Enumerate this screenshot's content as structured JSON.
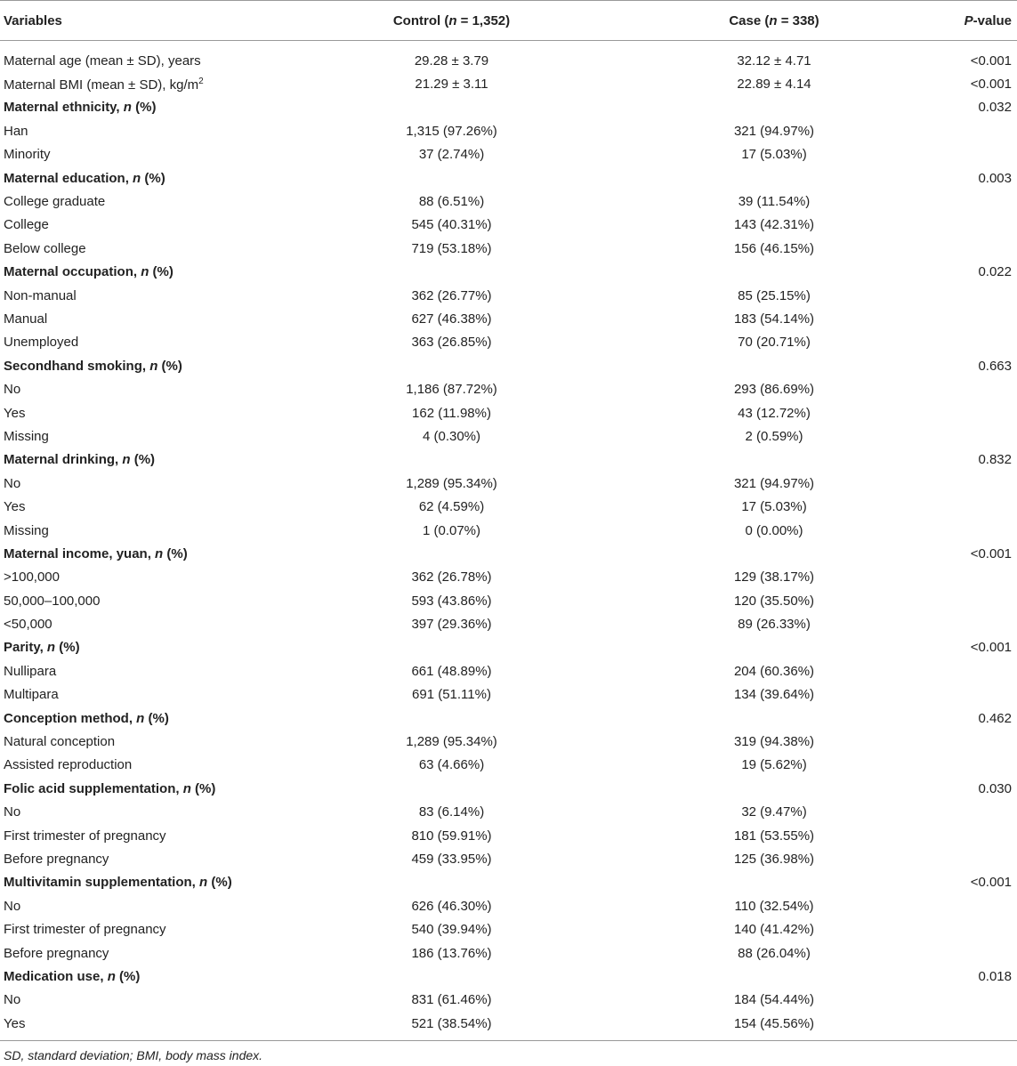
{
  "table": {
    "columns": [
      {
        "text": "Variables"
      },
      {
        "pre": "Control (",
        "italic": "n",
        "post": " = 1,352)"
      },
      {
        "pre": "Case (",
        "italic": "n",
        "post": " = 338)"
      },
      {
        "pre": "",
        "italic": "P",
        "post": "-value"
      }
    ],
    "rows": [
      {
        "type": "data",
        "label": "Maternal age (mean ± SD), years",
        "control": "29.28 ± 3.79",
        "case": "32.12 ± 4.71",
        "p": "<0.001"
      },
      {
        "type": "data",
        "label": "Maternal BMI (mean ± SD), kg/m",
        "sup": "2",
        "control": "21.29 ± 3.11",
        "case": "22.89 ± 4.14",
        "p": "<0.001"
      },
      {
        "type": "header",
        "label": "Maternal ethnicity, ",
        "n": "n",
        "suffix": " (%)",
        "p": "0.032"
      },
      {
        "type": "data",
        "label": "Han",
        "control": "1,315 (97.26%)",
        "case": "321 (94.97%)",
        "p": ""
      },
      {
        "type": "data",
        "label": "Minority",
        "control": "37 (2.74%)",
        "case": "17 (5.03%)",
        "p": ""
      },
      {
        "type": "header",
        "label": "Maternal education, ",
        "n": "n",
        "suffix": " (%)",
        "p": "0.003"
      },
      {
        "type": "data",
        "label": "College graduate",
        "control": "88 (6.51%)",
        "case": "39 (11.54%)",
        "p": ""
      },
      {
        "type": "data",
        "label": "College",
        "control": "545 (40.31%)",
        "case": "143 (42.31%)",
        "p": ""
      },
      {
        "type": "data",
        "label": "Below college",
        "control": "719 (53.18%)",
        "case": "156 (46.15%)",
        "p": ""
      },
      {
        "type": "header",
        "label": "Maternal occupation, ",
        "n": "n",
        "suffix": " (%)",
        "p": "0.022"
      },
      {
        "type": "data",
        "label": "Non-manual",
        "control": "362 (26.77%)",
        "case": "85 (25.15%)",
        "p": ""
      },
      {
        "type": "data",
        "label": "Manual",
        "control": "627 (46.38%)",
        "case": "183 (54.14%)",
        "p": ""
      },
      {
        "type": "data",
        "label": "Unemployed",
        "control": "363 (26.85%)",
        "case": "70 (20.71%)",
        "p": ""
      },
      {
        "type": "header",
        "label": "Secondhand smoking, ",
        "n": "n",
        "suffix": " (%)",
        "p": "0.663"
      },
      {
        "type": "data",
        "label": "No",
        "control": "1,186 (87.72%)",
        "case": "293 (86.69%)",
        "p": ""
      },
      {
        "type": "data",
        "label": "Yes",
        "control": "162 (11.98%)",
        "case": "43 (12.72%)",
        "p": ""
      },
      {
        "type": "data",
        "label": "Missing",
        "control": "4 (0.30%)",
        "case": "2 (0.59%)",
        "p": ""
      },
      {
        "type": "header",
        "label": "Maternal drinking, ",
        "n": "n",
        "suffix": " (%)",
        "p": "0.832"
      },
      {
        "type": "data",
        "label": "No",
        "control": "1,289 (95.34%)",
        "case": "321 (94.97%)",
        "p": ""
      },
      {
        "type": "data",
        "label": "Yes",
        "control": "62 (4.59%)",
        "case": "17 (5.03%)",
        "p": ""
      },
      {
        "type": "data",
        "label": "Missing",
        "control": "1 (0.07%)",
        "case": "0 (0.00%)",
        "p": ""
      },
      {
        "type": "header",
        "label": "Maternal income, yuan, ",
        "n": "n",
        "suffix": " (%)",
        "p": "<0.001"
      },
      {
        "type": "data",
        "label": ">100,000",
        "control": "362 (26.78%)",
        "case": "129 (38.17%)",
        "p": ""
      },
      {
        "type": "data",
        "label": "50,000–100,000",
        "control": "593 (43.86%)",
        "case": "120 (35.50%)",
        "p": ""
      },
      {
        "type": "data",
        "label": "<50,000",
        "control": "397 (29.36%)",
        "case": "89 (26.33%)",
        "p": ""
      },
      {
        "type": "header",
        "label": "Parity, ",
        "n": "n",
        "suffix": " (%)",
        "p": "<0.001"
      },
      {
        "type": "data",
        "label": "Nullipara",
        "control": "661 (48.89%)",
        "case": "204 (60.36%)",
        "p": ""
      },
      {
        "type": "data",
        "label": "Multipara",
        "control": "691 (51.11%)",
        "case": "134 (39.64%)",
        "p": ""
      },
      {
        "type": "header",
        "label": "Conception method, ",
        "n": "n",
        "suffix": " (%)",
        "p": "0.462"
      },
      {
        "type": "data",
        "label": "Natural conception",
        "control": "1,289 (95.34%)",
        "case": "319 (94.38%)",
        "p": ""
      },
      {
        "type": "data",
        "label": "Assisted reproduction",
        "control": "63 (4.66%)",
        "case": "19 (5.62%)",
        "p": ""
      },
      {
        "type": "header",
        "label": "Folic acid supplementation, ",
        "n": "n",
        "suffix": " (%)",
        "p": "0.030"
      },
      {
        "type": "data",
        "label": "No",
        "control": "83 (6.14%)",
        "case": "32 (9.47%)",
        "p": ""
      },
      {
        "type": "data",
        "label": "First trimester of pregnancy",
        "control": "810 (59.91%)",
        "case": "181 (53.55%)",
        "p": ""
      },
      {
        "type": "data",
        "label": "Before pregnancy",
        "control": "459 (33.95%)",
        "case": "125 (36.98%)",
        "p": ""
      },
      {
        "type": "header",
        "label": "Multivitamin supplementation, ",
        "n": "n",
        "suffix": " (%)",
        "p": "<0.001"
      },
      {
        "type": "data",
        "label": "No",
        "control": "626 (46.30%)",
        "case": "110 (32.54%)",
        "p": ""
      },
      {
        "type": "data",
        "label": "First trimester of pregnancy",
        "control": "540 (39.94%)",
        "case": "140 (41.42%)",
        "p": ""
      },
      {
        "type": "data",
        "label": "Before pregnancy",
        "control": "186 (13.76%)",
        "case": "88 (26.04%)",
        "p": ""
      },
      {
        "type": "header",
        "label": "Medication use, ",
        "n": "n",
        "suffix": " (%)",
        "p": "0.018"
      },
      {
        "type": "data",
        "label": "No",
        "control": "831 (61.46%)",
        "case": "184 (54.44%)",
        "p": ""
      },
      {
        "type": "data",
        "label": "Yes",
        "control": "521 (38.54%)",
        "case": "154 (45.56%)",
        "p": ""
      }
    ]
  },
  "footnote": "SD, standard deviation; BMI, body mass index."
}
